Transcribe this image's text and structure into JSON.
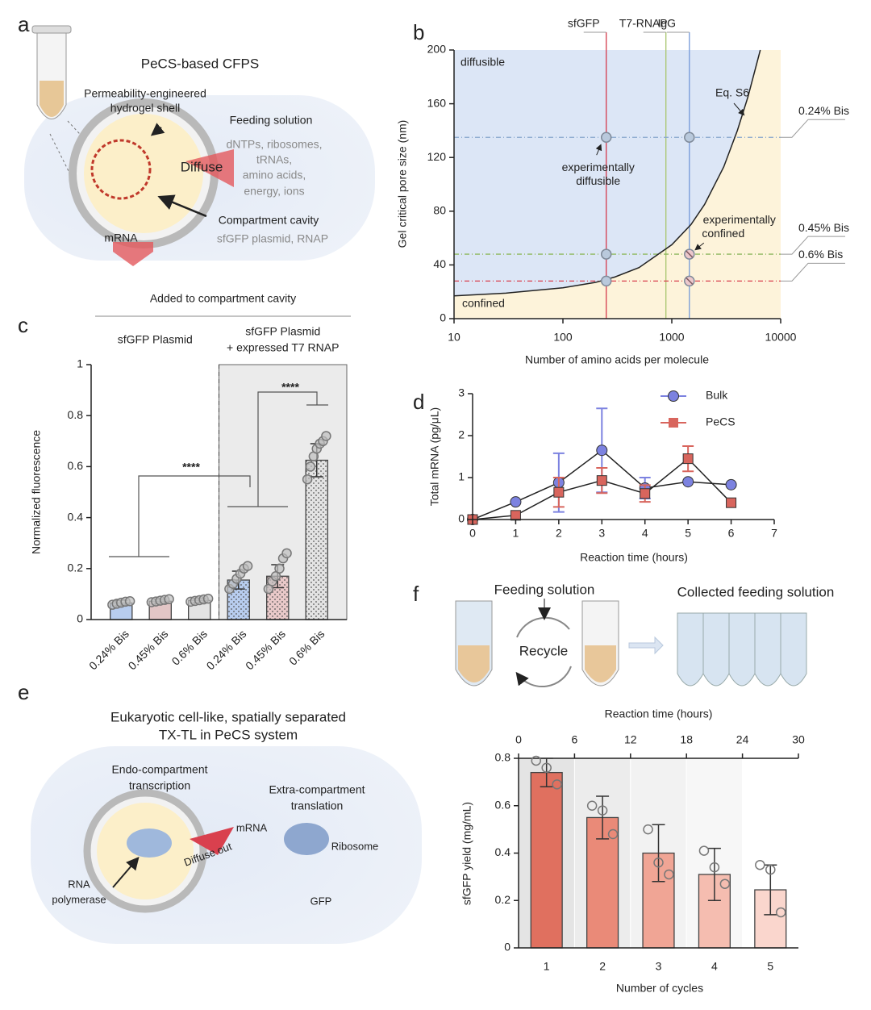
{
  "panel_labels": [
    "a",
    "b",
    "c",
    "d",
    "e",
    "f"
  ],
  "diagram_a": {
    "title": "PeCS-based CFPS",
    "shell": [
      "Permeability-engineered",
      "hydrogel shell"
    ],
    "feeding": "Feeding solution",
    "feeding_items": [
      "dNTPs, ribosomes,",
      "tRNAs,",
      "amino acids,",
      "energy, ions"
    ],
    "diffuse": "Diffuse",
    "cavity": "Compartment cavity",
    "cavity_items": "sfGFP plasmid, RNAP",
    "mrna": "mRNA"
  },
  "diagram_e": {
    "title": [
      "Eukaryotic cell-like, spatially separated",
      "TX-TL in PeCS system"
    ],
    "endo": [
      "Endo-compartment",
      "transcription"
    ],
    "extra": [
      "Extra-compartment",
      "translation"
    ],
    "mrna": "mRNA",
    "diffuse": "Diffuse out",
    "ribosome": "Ribosome",
    "rnap": [
      "RNA",
      "polymerase"
    ],
    "gfp": "GFP"
  },
  "diagram_f": {
    "feeding": "Feeding solution",
    "recycle": "Recycle",
    "collected": "Collected feeding solution"
  },
  "chart_data": [
    {
      "type": "line",
      "xscale": "log",
      "xlabel": "Number of amino acids per molecule",
      "ylabel": "Gel critical pore size (nm)",
      "xlim": [
        10,
        10000
      ],
      "xticks": [
        10,
        100,
        1000,
        10000
      ],
      "ylim": [
        0,
        200
      ],
      "yticks": [
        0,
        40,
        80,
        120,
        160,
        200
      ],
      "regions": {
        "above": "diffusible",
        "below": "confined",
        "above_color": "#dce6f6",
        "below_color": "#fdf3da"
      },
      "series": [
        {
          "name": "Eq. S6",
          "color": "#222222",
          "x": [
            10,
            30,
            100,
            200,
            300,
            500,
            1000,
            1500,
            2000,
            3000,
            4000,
            5000,
            6500
          ],
          "values": [
            17,
            19,
            23,
            27,
            31,
            38,
            55,
            70,
            85,
            113,
            140,
            165,
            200
          ]
        }
      ],
      "proteins": [
        {
          "name": "sfGFP",
          "x": 250,
          "color": "#d43a4c"
        },
        {
          "name": "T7-RNAP",
          "x": 883,
          "color": "#a8c56d"
        },
        {
          "name": "IgG",
          "x": 1450,
          "color": "#7398d8"
        }
      ],
      "gels": [
        {
          "name": "0.24% Bis",
          "y": 135,
          "color": "#86a5cc"
        },
        {
          "name": "0.45% Bis",
          "y": 48,
          "color": "#8eb85f"
        },
        {
          "name": "0.6% Bis",
          "y": 28,
          "color": "#d9404e"
        }
      ],
      "diffusible_points": {
        "x": [
          250,
          1450,
          250,
          250
        ],
        "values": [
          135,
          135,
          48,
          28
        ]
      },
      "confined_points": {
        "x": [
          1450,
          1450
        ],
        "values": [
          48,
          28
        ]
      },
      "point_color": "#b9c9dc",
      "confined_color": "#ecc8cc",
      "annotations": {
        "diffusible": [
          "experimentally",
          "diffusible"
        ],
        "confined": [
          "experimentally",
          "confined"
        ]
      }
    },
    {
      "type": "bar",
      "ylabel": "Normalized fluorescence",
      "header": "Added to compartment cavity",
      "groups": [
        {
          "name": [
            "sfGFP Plasmid"
          ]
        },
        {
          "name": [
            "sfGFP Plasmid",
            "+ expressed T7 RNAP"
          ]
        }
      ],
      "group_colors": [
        "#ffffff",
        "#ebebeb"
      ],
      "categories": [
        "0.24% Bis",
        "0.45% Bis",
        "0.6% Bis",
        "0.24% Bis",
        "0.45% Bis",
        "0.6% Bis"
      ],
      "values": [
        0.065,
        0.072,
        0.075,
        0.155,
        0.17,
        0.625
      ],
      "errors": [
        0.01,
        0.008,
        0.008,
        0.035,
        0.045,
        0.065
      ],
      "points": [
        [
          0.058,
          0.062,
          0.066,
          0.07,
          0.072
        ],
        [
          0.068,
          0.071,
          0.074,
          0.077,
          0.08
        ],
        [
          0.07,
          0.073,
          0.076,
          0.079,
          0.082
        ],
        [
          0.12,
          0.14,
          0.16,
          0.18,
          0.2,
          0.21
        ],
        [
          0.12,
          0.15,
          0.17,
          0.2,
          0.24,
          0.26
        ],
        [
          0.55,
          0.6,
          0.64,
          0.67,
          0.69,
          0.7,
          0.72
        ]
      ],
      "colors": [
        "#b8cdef",
        "#e2c6c6",
        "#e3e3e3",
        "#b8cdef",
        "#e9c9c9",
        "#e3e3e3"
      ],
      "patterned": [
        false,
        false,
        false,
        true,
        true,
        true
      ],
      "ylim": [
        0,
        1
      ],
      "yticks": [
        0,
        0.2,
        0.4,
        0.6,
        0.8,
        1
      ],
      "significance": [
        "****",
        "****"
      ]
    },
    {
      "type": "line",
      "xlabel": "Reaction time (hours)",
      "ylabel": "Total mRNA (pg/μL)",
      "xlim": [
        0,
        7
      ],
      "xticks": [
        0,
        1,
        2,
        3,
        4,
        5,
        6,
        7
      ],
      "ylim": [
        0,
        3
      ],
      "yticks": [
        0,
        1,
        2,
        3
      ],
      "line_color": "#222222",
      "legend": "top right",
      "x": [
        0,
        1,
        2,
        3,
        4,
        5,
        6
      ],
      "series": [
        {
          "name": "Bulk",
          "color": "#7c82e0",
          "marker": "circle",
          "values": [
            0,
            0.42,
            0.88,
            1.65,
            0.75,
            0.9,
            0.83
          ],
          "errors": [
            null,
            null,
            0.7,
            1.0,
            0.25,
            null,
            null
          ]
        },
        {
          "name": "PeCS",
          "color": "#d8655d",
          "marker": "square",
          "values": [
            0,
            0.1,
            0.65,
            0.93,
            0.62,
            1.45,
            0.4
          ],
          "errors": [
            null,
            null,
            0.35,
            0.3,
            0.2,
            0.3,
            null
          ]
        }
      ]
    },
    {
      "type": "bar",
      "xlabel": "Number of cycles",
      "ylabel": "sfGFP yield (mg/mL)",
      "x2label": "Reaction time (hours)",
      "x2lim": [
        0,
        30
      ],
      "x2ticks": [
        0,
        6,
        12,
        18,
        24,
        30
      ],
      "categories": [
        "1",
        "2",
        "3",
        "4",
        "5"
      ],
      "values": [
        0.74,
        0.55,
        0.4,
        0.31,
        0.245
      ],
      "errors": [
        0.06,
        0.09,
        0.12,
        0.11,
        0.105
      ],
      "points": [
        [
          0.79,
          0.76,
          0.69
        ],
        [
          0.6,
          0.58,
          0.48
        ],
        [
          0.5,
          0.36,
          0.31
        ],
        [
          0.41,
          0.34,
          0.27
        ],
        [
          0.35,
          0.33,
          0.15
        ]
      ],
      "colors": [
        "#e0705f",
        "#ea8a78",
        "#f0a595",
        "#f5bdb0",
        "#fad6cd"
      ],
      "band_colors": [
        "#e4e4e4",
        "#ececec",
        "#f2f2f2",
        "#f7f7f7",
        "#ffffff"
      ],
      "ylim": [
        0,
        0.8
      ],
      "yticks": [
        0,
        0.2,
        0.4,
        0.6,
        0.8
      ]
    }
  ]
}
